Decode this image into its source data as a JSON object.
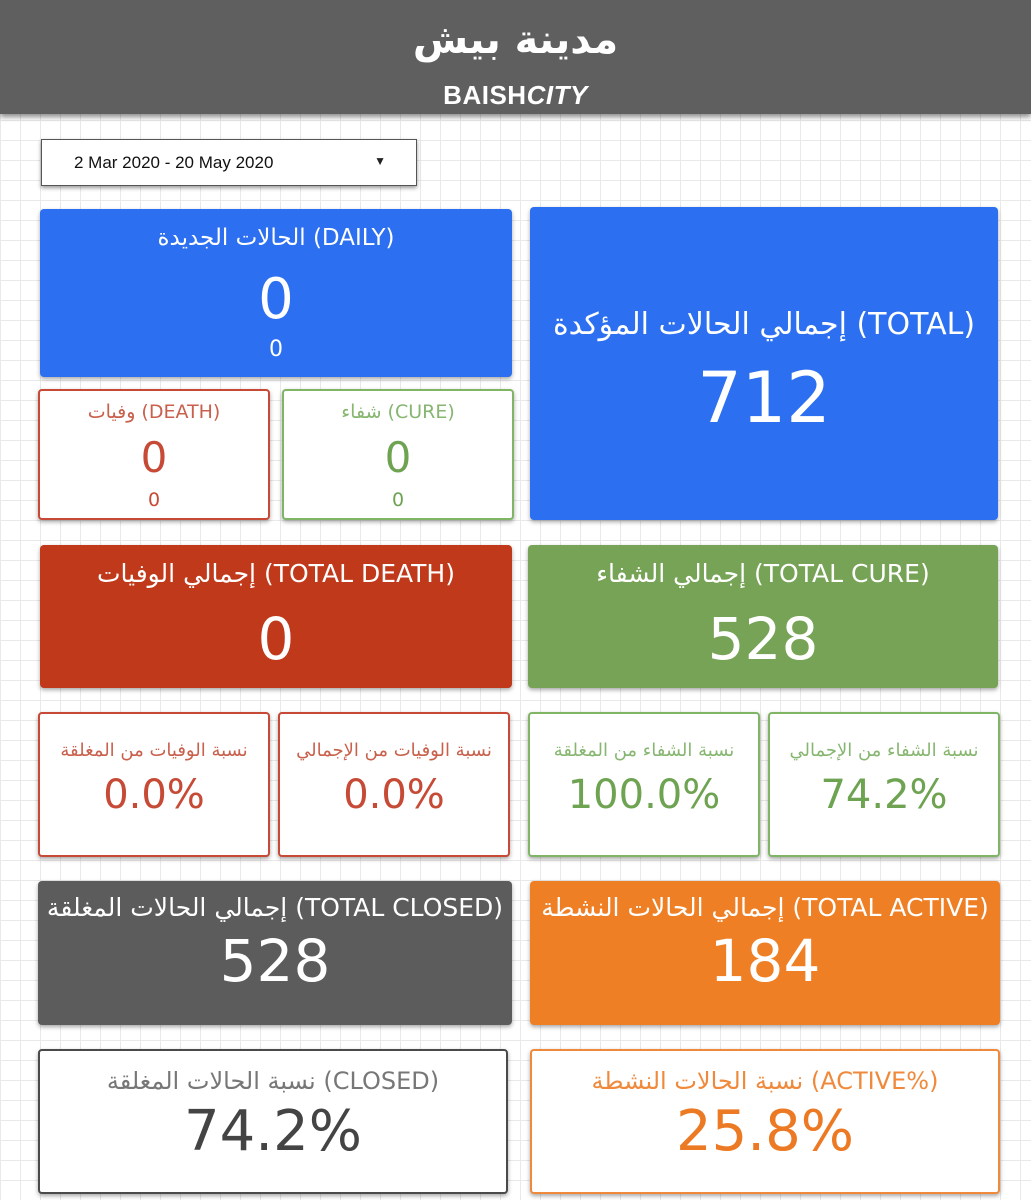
{
  "header": {
    "title_ar": "مدينة بيش",
    "title_en_bold": "BAISH",
    "title_en_italic": "CITY"
  },
  "date_range": {
    "value": "2 Mar 2020 - 20 May 2020",
    "caret": "▼"
  },
  "cards": {
    "daily_new": {
      "label": "الحالات الجديدة (DAILY)",
      "value": "0",
      "sub": "0"
    },
    "total_confirmed": {
      "label": "إجمالي الحالات المؤكدة (TOTAL)",
      "value": "712"
    },
    "death": {
      "label": "وفيات (DEATH)",
      "value": "0",
      "sub": "0"
    },
    "cure": {
      "label": "شفاء (CURE)",
      "value": "0",
      "sub": "0"
    },
    "total_death": {
      "label": "إجمالي الوفيات (TOTAL DEATH)",
      "value": "0"
    },
    "total_cure": {
      "label": "إجمالي الشفاء (TOTAL CURE)",
      "value": "528"
    },
    "death_rate_closed": {
      "label": "نسبة الوفيات من المغلقة",
      "value": "0.0%"
    },
    "death_rate_total": {
      "label": "نسبة الوفيات من الإجمالي",
      "value": "0.0%"
    },
    "cure_rate_closed": {
      "label": "نسبة الشفاء من المغلقة",
      "value": "100.0%"
    },
    "cure_rate_total": {
      "label": "نسبة الشفاء من الإجمالي",
      "value": "74.2%"
    },
    "total_closed": {
      "label": "إجمالي الحالات المغلقة (TOTAL CLOSED)",
      "value": "528"
    },
    "total_active": {
      "label": "إجمالي الحالات النشطة (TOTAL ACTIVE)",
      "value": "184"
    },
    "closed_pct": {
      "label": "نسبة الحالات المغلقة (CLOSED)",
      "value": "74.2%"
    },
    "active_pct": {
      "label": "نسبة الحالات النشطة (ACTIVE%)",
      "value": "25.8%"
    }
  },
  "colors": {
    "blue": "#2c6ff0",
    "red": "#c1391b",
    "green": "#76a355",
    "gray": "#5c5c5c",
    "orange": "#ef7f25",
    "header": "#5f5f5f"
  }
}
